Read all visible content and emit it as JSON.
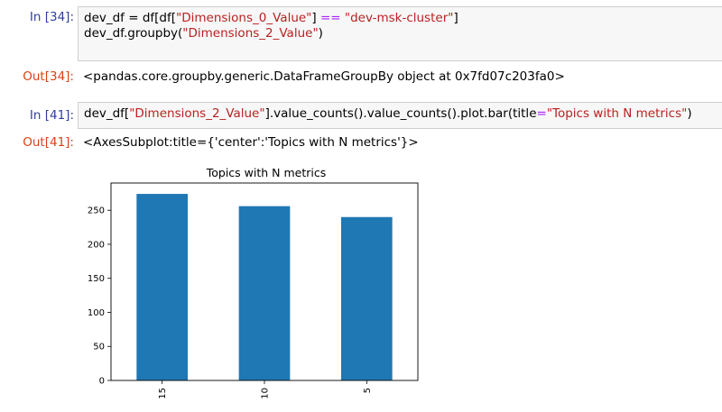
{
  "cells": [
    {
      "in_prompt": "In [34]:",
      "code_line1": {
        "p1": "dev_df = df[df[",
        "s1": "\"Dimensions_0_Value\"",
        "p2": "] ",
        "op": "==",
        "p3": " ",
        "s2": "\"dev-msk-cluster\"",
        "p4": "]"
      },
      "code_line2": {
        "p1": "dev_df.groupby(",
        "s1": "\"Dimensions_2_Value\"",
        "p2": ")"
      },
      "out_prompt": "Out[34]:",
      "output": "<pandas.core.groupby.generic.DataFrameGroupBy object at 0x7fd07c203fa0>"
    },
    {
      "in_prompt": "In [41]:",
      "code_line1": {
        "p1": "dev_df[",
        "s1": "\"Dimensions_2_Value\"",
        "p2": "].value_counts().value_counts().plot.bar(title",
        "op": "=",
        "s2": "\"Topics with N metrics\"",
        "p3": ")"
      },
      "out_prompt": "Out[41]:",
      "output": "<AxesSubplot:title={'center':'Topics with N metrics'}>"
    }
  ],
  "chart_data": {
    "type": "bar",
    "title": "Topics with N metrics",
    "categories": [
      "15",
      "10",
      "5"
    ],
    "values": [
      274,
      256,
      240
    ],
    "ylim": [
      0,
      290
    ],
    "yticks": [
      0,
      50,
      100,
      150,
      200,
      250
    ],
    "bar_color": "#1f77b4",
    "xlabel": "",
    "ylabel": "",
    "grid": false,
    "xtick_rotation": 90
  }
}
